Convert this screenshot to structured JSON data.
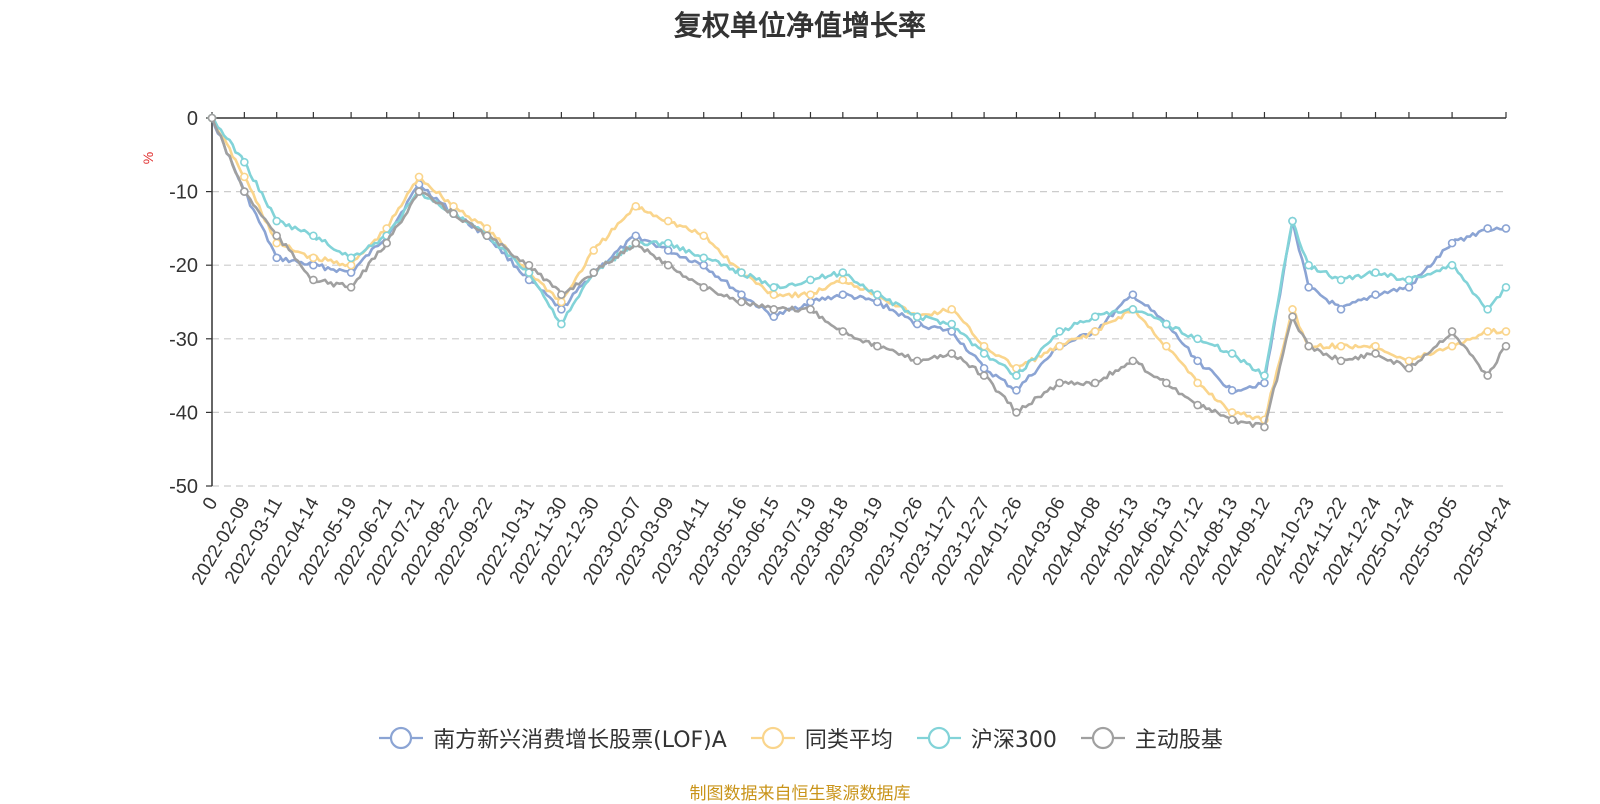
{
  "chart_data": {
    "type": "line",
    "title": "复权单位净值增长率",
    "ylabel": "%",
    "ylim": [
      -50,
      0
    ],
    "yticks": [
      0,
      -10,
      -20,
      -30,
      -40,
      -50
    ],
    "grid": true,
    "legend_position": "bottom",
    "source_note": "制图数据来自恒生聚源数据库",
    "x_tick_labels": [
      "0",
      "2022-02-09",
      "2022-03-11",
      "2022-04-14",
      "2022-05-19",
      "2022-06-21",
      "2022-07-21",
      "2022-08-22",
      "2022-09-22",
      "2022-10-31",
      "2022-11-30",
      "2022-12-30",
      "2023-02-07",
      "2023-03-09",
      "2023-04-11",
      "2023-05-16",
      "2023-06-15",
      "2023-07-19",
      "2023-08-18",
      "2023-09-19",
      "2023-10-26",
      "2023-11-27",
      "2023-12-27",
      "2024-01-26",
      "2024-03-06",
      "2024-04-08",
      "2024-05-13",
      "2024-06-13",
      "2024-07-12",
      "2024-08-13",
      "2024-09-12",
      "2024-10-23",
      "2024-11-22",
      "2024-12-24",
      "2025-01-24",
      "2025-03-05",
      "2025-04-24"
    ],
    "x": [
      "0",
      "2022-02-09",
      "2022-03-11",
      "2022-04-14",
      "2022-05-19",
      "2022-06-21",
      "2022-07-21",
      "2022-08-22",
      "2022-09-22",
      "2022-10-31",
      "2022-11-30",
      "2022-12-30",
      "2023-02-07",
      "2023-03-09",
      "2023-04-11",
      "2023-05-16",
      "2023-06-15",
      "2023-07-19",
      "2023-08-18",
      "2023-09-19",
      "2023-10-26",
      "2023-11-27",
      "2023-12-27",
      "2024-01-26",
      "2024-03-06",
      "2024-04-08",
      "2024-05-13",
      "2024-06-13",
      "2024-07-12",
      "2024-08-13",
      "2024-09-12",
      "2024-10-08",
      "2024-10-23",
      "2024-11-22",
      "2024-12-24",
      "2025-01-24",
      "2025-03-05",
      "2025-04-07",
      "2025-04-24"
    ],
    "series": [
      {
        "name": "南方新兴消费增长股票(LOF)A",
        "color": "#8ba4d4",
        "values": [
          0,
          -10,
          -19,
          -20,
          -21,
          -16,
          -9,
          -13,
          -16,
          -22,
          -26,
          -21,
          -16,
          -18,
          -20,
          -24,
          -27,
          -25,
          -24,
          -25,
          -28,
          -29,
          -34,
          -37,
          -31,
          -29,
          -24,
          -28,
          -33,
          -37,
          -36,
          -14,
          -23,
          -26,
          -24,
          -23,
          -17,
          -15,
          -15
        ]
      },
      {
        "name": "同类平均",
        "color": "#fad58c",
        "values": [
          0,
          -8,
          -17,
          -19,
          -20,
          -15,
          -8,
          -12,
          -15,
          -21,
          -25,
          -18,
          -12,
          -14,
          -16,
          -21,
          -24,
          -24,
          -22,
          -24,
          -27,
          -26,
          -31,
          -34,
          -31,
          -29,
          -26,
          -31,
          -36,
          -40,
          -41,
          -26,
          -31,
          -31,
          -31,
          -33,
          -31,
          -29,
          -29
        ]
      },
      {
        "name": "沪深300",
        "color": "#82d3d8",
        "values": [
          0,
          -6,
          -14,
          -16,
          -19,
          -16,
          -10,
          -13,
          -16,
          -21,
          -28,
          -21,
          -17,
          -17,
          -19,
          -21,
          -23,
          -22,
          -21,
          -24,
          -27,
          -28,
          -32,
          -35,
          -29,
          -27,
          -26,
          -28,
          -30,
          -32,
          -35,
          -14,
          -20,
          -22,
          -21,
          -22,
          -20,
          -26,
          -23
        ]
      },
      {
        "name": "主动股基",
        "color": "#a0a0a0",
        "values": [
          0,
          -10,
          -16,
          -22,
          -23,
          -17,
          -10,
          -13,
          -16,
          -20,
          -24,
          -21,
          -17,
          -20,
          -23,
          -25,
          -26,
          -26,
          -29,
          -31,
          -33,
          -32,
          -35,
          -40,
          -36,
          -36,
          -33,
          -36,
          -39,
          -41,
          -42,
          -27,
          -31,
          -33,
          -32,
          -34,
          -29,
          -35,
          -31
        ]
      }
    ]
  }
}
